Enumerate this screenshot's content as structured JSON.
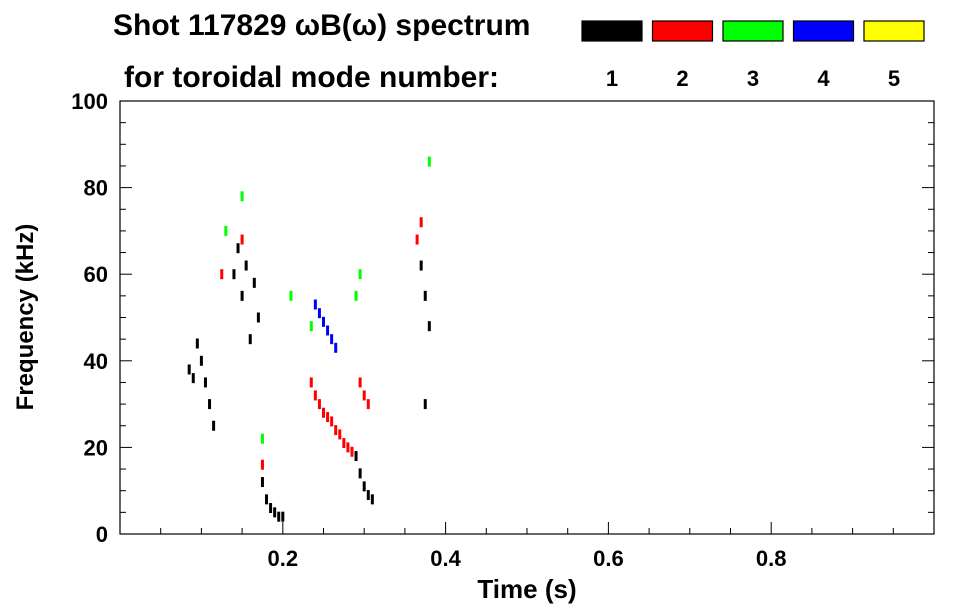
{
  "chart_data": {
    "type": "heatmap",
    "title": "Shot 117829 ωB(ω) spectrum",
    "subtitle": "for toroidal mode number:",
    "xlabel": "Time (s)",
    "ylabel": "Frequency (kHz)",
    "xlim": [
      0.0,
      1.0
    ],
    "ylim": [
      0,
      100
    ],
    "x_ticks": [
      "0.2",
      "0.4",
      "0.6",
      "0.8"
    ],
    "y_ticks": [
      "0",
      "20",
      "40",
      "60",
      "80",
      "100"
    ],
    "legend": {
      "placement": "top-right",
      "entries": [
        {
          "label": "1",
          "color": "#000000"
        },
        {
          "label": "2",
          "color": "#ff0000"
        },
        {
          "label": "3",
          "color": "#00ff00"
        },
        {
          "label": "4",
          "color": "#0000ff"
        },
        {
          "label": "5",
          "color": "#ffff00"
        }
      ]
    },
    "series": [
      {
        "name": "1",
        "color": "#000000",
        "points": [
          [
            0.085,
            38
          ],
          [
            0.09,
            36
          ],
          [
            0.095,
            44
          ],
          [
            0.1,
            40
          ],
          [
            0.105,
            35
          ],
          [
            0.11,
            30
          ],
          [
            0.115,
            25
          ],
          [
            0.14,
            60
          ],
          [
            0.145,
            66
          ],
          [
            0.15,
            55
          ],
          [
            0.155,
            62
          ],
          [
            0.16,
            45
          ],
          [
            0.165,
            58
          ],
          [
            0.17,
            50
          ],
          [
            0.175,
            12
          ],
          [
            0.18,
            8
          ],
          [
            0.185,
            6
          ],
          [
            0.19,
            5
          ],
          [
            0.195,
            4
          ],
          [
            0.2,
            4
          ],
          [
            0.29,
            18
          ],
          [
            0.295,
            14
          ],
          [
            0.3,
            11
          ],
          [
            0.305,
            9
          ],
          [
            0.31,
            8
          ],
          [
            0.37,
            62
          ],
          [
            0.375,
            55
          ],
          [
            0.38,
            48
          ],
          [
            0.375,
            30
          ]
        ]
      },
      {
        "name": "2",
        "color": "#ff0000",
        "points": [
          [
            0.125,
            60
          ],
          [
            0.15,
            68
          ],
          [
            0.175,
            16
          ],
          [
            0.235,
            35
          ],
          [
            0.24,
            32
          ],
          [
            0.245,
            30
          ],
          [
            0.25,
            28
          ],
          [
            0.255,
            27
          ],
          [
            0.26,
            26
          ],
          [
            0.265,
            24
          ],
          [
            0.27,
            23
          ],
          [
            0.275,
            21
          ],
          [
            0.28,
            20
          ],
          [
            0.285,
            19
          ],
          [
            0.295,
            35
          ],
          [
            0.3,
            32
          ],
          [
            0.305,
            30
          ],
          [
            0.365,
            68
          ],
          [
            0.37,
            72
          ]
        ]
      },
      {
        "name": "3",
        "color": "#00ff00",
        "points": [
          [
            0.13,
            70
          ],
          [
            0.15,
            78
          ],
          [
            0.175,
            22
          ],
          [
            0.21,
            55
          ],
          [
            0.235,
            48
          ],
          [
            0.29,
            55
          ],
          [
            0.295,
            60
          ],
          [
            0.38,
            86
          ]
        ]
      },
      {
        "name": "4",
        "color": "#0000ff",
        "points": [
          [
            0.24,
            53
          ],
          [
            0.245,
            51
          ],
          [
            0.25,
            49
          ],
          [
            0.255,
            47
          ],
          [
            0.26,
            45
          ],
          [
            0.265,
            43
          ]
        ]
      },
      {
        "name": "5",
        "color": "#ffff00",
        "points": []
      }
    ]
  }
}
